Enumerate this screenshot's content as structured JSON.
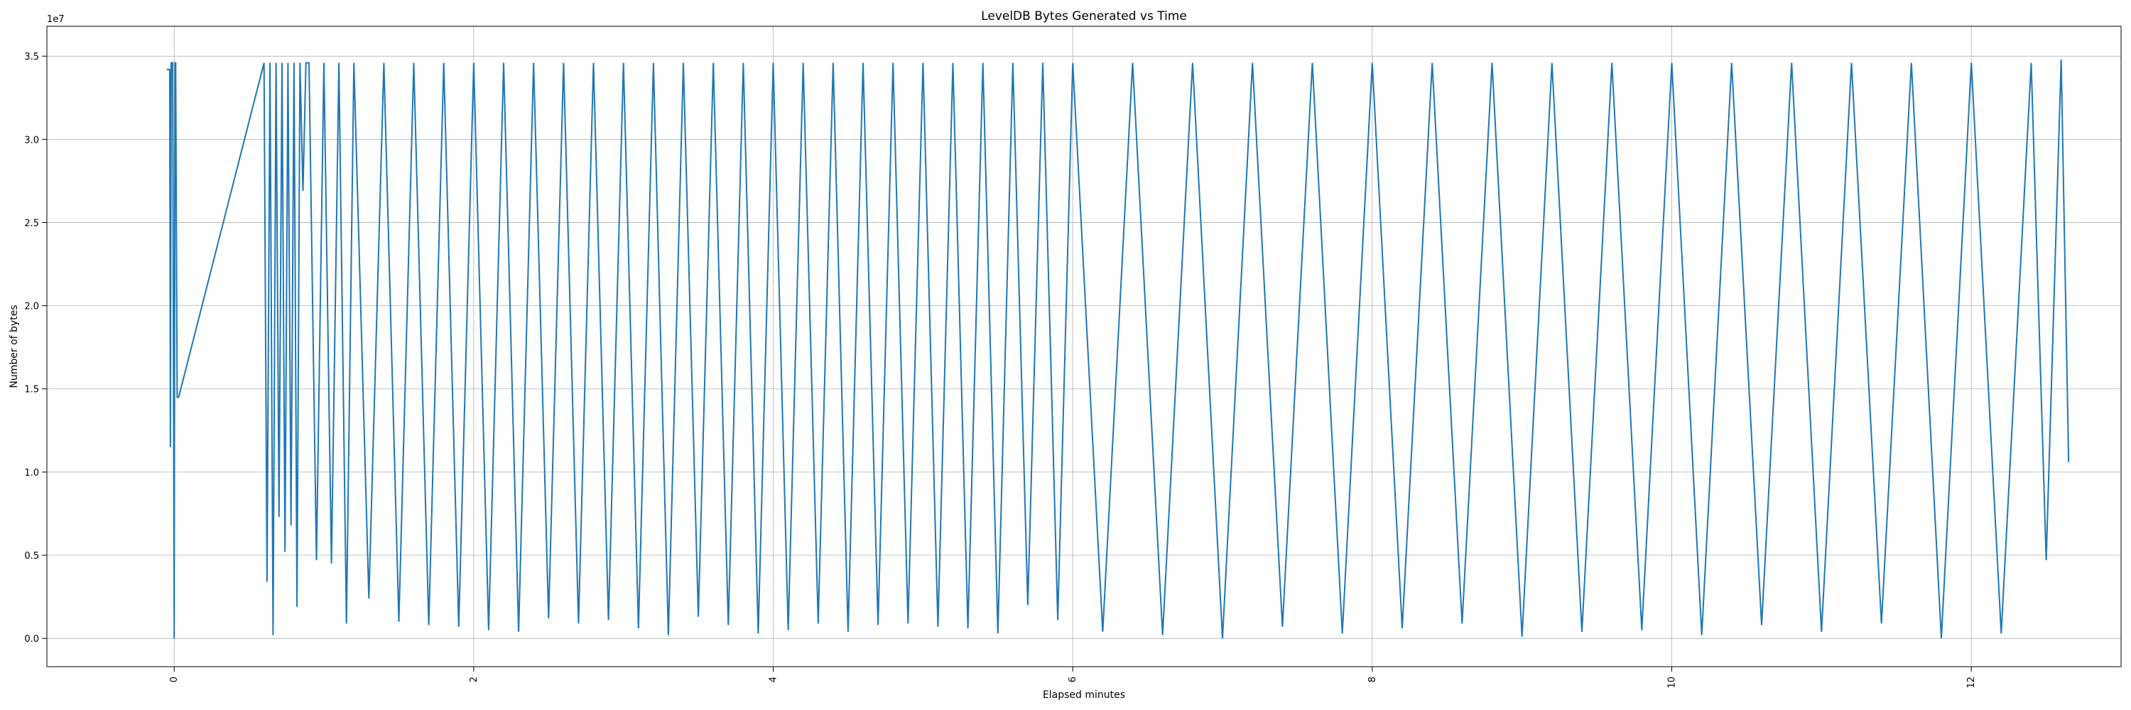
{
  "chart_data": {
    "type": "line",
    "title": "LevelDB Bytes Generated vs Time",
    "xlabel": "Elapsed minutes",
    "ylabel": "Number of bytes",
    "y_offset_label": "1e7",
    "xlim": [
      -0.85,
      13.0
    ],
    "ylim": [
      -0.17,
      3.68
    ],
    "x_ticks": [
      0,
      2,
      4,
      6,
      8,
      10,
      12
    ],
    "x_tick_labels": [
      "0",
      "2",
      "4",
      "6",
      "8",
      "10",
      "12"
    ],
    "y_ticks": [
      0.0,
      0.5,
      1.0,
      1.5,
      2.0,
      2.5,
      3.0,
      3.5
    ],
    "y_tick_labels": [
      "0.0",
      "0.5",
      "1.0",
      "1.5",
      "2.0",
      "2.5",
      "3.0",
      "3.5"
    ],
    "grid": true,
    "line_color": "#1f77b4",
    "series": [
      {
        "x": [
          -0.05,
          -0.03,
          -0.025,
          -0.02,
          -0.01,
          0.0,
          0.003,
          0.006,
          0.01,
          0.02,
          0.03,
          0.6,
          0.62,
          0.64,
          0.66,
          0.68,
          0.7,
          0.72,
          0.74,
          0.76,
          0.78,
          0.8,
          0.82,
          0.84,
          0.86,
          0.88,
          0.9,
          0.95,
          1.0,
          1.05,
          1.1,
          1.15,
          1.2,
          1.3,
          1.4,
          1.5,
          1.6,
          1.7,
          1.8,
          1.9,
          2.0,
          2.1,
          2.2,
          2.3,
          2.4,
          2.5,
          2.6,
          2.7,
          2.8,
          2.9,
          3.0,
          3.1,
          3.2,
          3.3,
          3.4,
          3.5,
          3.6,
          3.7,
          3.8,
          3.9,
          4.0,
          4.1,
          4.2,
          4.3,
          4.4,
          4.5,
          4.6,
          4.7,
          4.8,
          4.9,
          5.0,
          5.1,
          5.2,
          5.3,
          5.4,
          5.5,
          5.6,
          5.7,
          5.8,
          5.9,
          6.0,
          6.2,
          6.4,
          6.6,
          6.8,
          7.0,
          7.2,
          7.4,
          7.6,
          7.8,
          8.0,
          8.2,
          8.4,
          8.6,
          8.8,
          9.0,
          9.2,
          9.4,
          9.6,
          9.8,
          10.0,
          10.2,
          10.4,
          10.6,
          10.8,
          11.0,
          11.2,
          11.4,
          11.6,
          11.8,
          12.0,
          12.2,
          12.4,
          12.5,
          12.6,
          12.65
        ],
        "y": [
          3.42,
          3.42,
          1.15,
          3.46,
          3.46,
          0.0,
          1.9,
          3.46,
          3.46,
          1.45,
          1.45,
          3.46,
          0.34,
          3.46,
          0.02,
          3.46,
          0.73,
          3.46,
          0.52,
          3.46,
          0.68,
          3.46,
          0.19,
          3.46,
          2.69,
          3.46,
          3.46,
          0.47,
          3.46,
          0.45,
          3.46,
          0.09,
          3.46,
          0.24,
          3.46,
          0.1,
          3.46,
          0.08,
          3.46,
          0.07,
          3.46,
          0.05,
          3.46,
          0.04,
          3.46,
          0.12,
          3.46,
          0.09,
          3.46,
          0.11,
          3.46,
          0.06,
          3.46,
          0.02,
          3.46,
          0.13,
          3.46,
          0.08,
          3.46,
          0.03,
          3.46,
          0.05,
          3.46,
          0.09,
          3.46,
          0.04,
          3.46,
          0.08,
          3.46,
          0.09,
          3.46,
          0.07,
          3.46,
          0.06,
          3.46,
          0.03,
          3.46,
          0.2,
          3.46,
          0.11,
          3.46,
          0.04,
          3.46,
          0.02,
          3.46,
          0.0,
          3.46,
          0.07,
          3.46,
          0.03,
          3.46,
          0.06,
          3.46,
          0.09,
          3.46,
          0.01,
          3.46,
          0.04,
          3.46,
          0.05,
          3.46,
          0.02,
          3.46,
          0.08,
          3.46,
          0.04,
          3.46,
          0.09,
          3.46,
          0.0,
          3.46,
          0.03,
          3.46,
          0.47,
          3.48,
          1.06
        ]
      }
    ]
  }
}
